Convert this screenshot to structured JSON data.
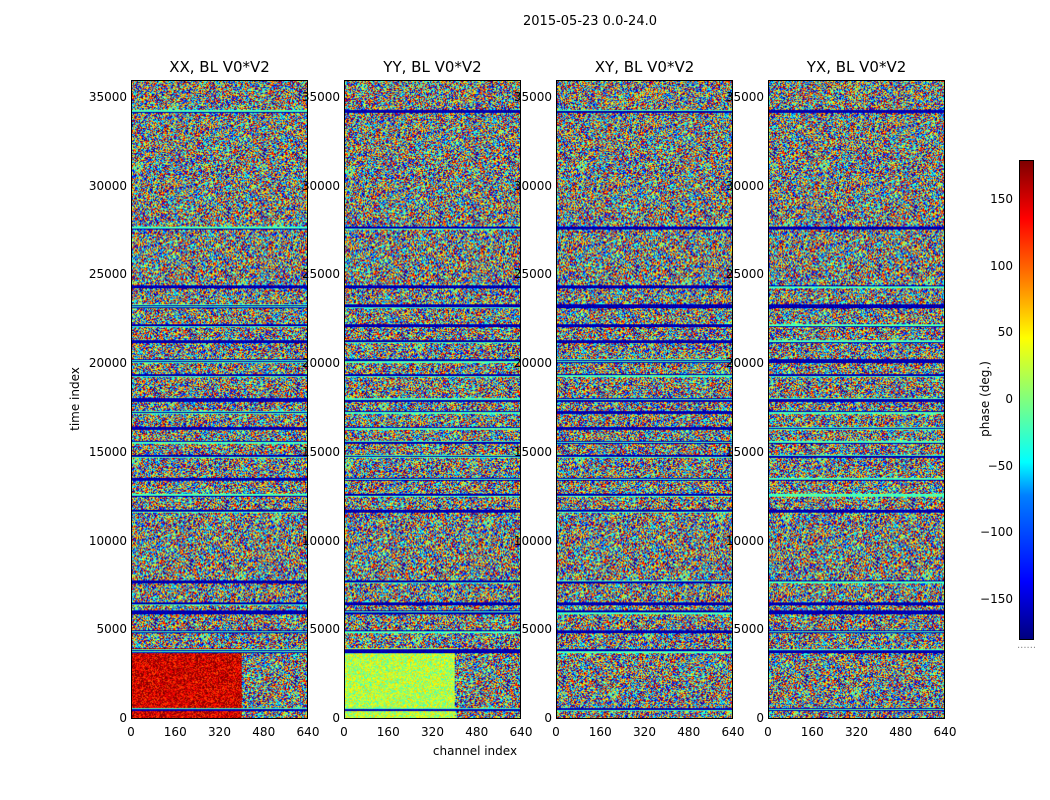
{
  "figure_title": "2015-05-23 0.0-24.0",
  "chart_data": {
    "type": "heatmap",
    "subtype": "phase waterfall (channel vs time)",
    "xlabel": "channel index",
    "ylabel": "time index",
    "xlim": [
      0,
      640
    ],
    "ylim": [
      0,
      36000
    ],
    "xticks": [
      0,
      160,
      320,
      480,
      640
    ],
    "xtick_labels": [
      "0",
      "160",
      "320",
      "480",
      "640"
    ],
    "yticks": [
      0,
      5000,
      10000,
      15000,
      20000,
      25000,
      30000,
      35000
    ],
    "ytick_labels": [
      "0",
      "5000",
      "10000",
      "15000",
      "20000",
      "25000",
      "30000",
      "35000"
    ],
    "panels": [
      {
        "name": "XX",
        "title": "XX, BL V0*V2",
        "coherent_low_region": {
          "time_range": [
            0,
            4000
          ],
          "channel_split": 400,
          "dominant_phase_deg": 150
        }
      },
      {
        "name": "YY",
        "title": "YY, BL V0*V2",
        "coherent_low_region": {
          "time_range": [
            0,
            4000
          ],
          "channel_split": 400,
          "dominant_phase_deg": 20
        }
      },
      {
        "name": "XY",
        "title": "XY, BL V0*V2",
        "coherent_low_region": null
      },
      {
        "name": "YX",
        "title": "YX, BL V0*V2",
        "coherent_low_region": null
      }
    ],
    "flagged_time_bands_approx": [
      500,
      3800,
      4900,
      6000,
      6500,
      7700,
      11700,
      12600,
      13500,
      14800,
      15600,
      16400,
      17300,
      18000,
      19400,
      20200,
      21300,
      22200,
      23300,
      24400,
      27700,
      34300
    ],
    "colorbar": {
      "label": "phase (deg.)",
      "range": [
        -180,
        180
      ],
      "ticks": [
        -150,
        -100,
        -50,
        0,
        50,
        100,
        150
      ],
      "tick_labels": [
        "−150",
        "−100",
        "−50",
        "0",
        "50",
        "100",
        "150"
      ],
      "colormap": "jet"
    }
  },
  "colors": {
    "jet_low": "#00007f",
    "jet_high": "#7f0000"
  }
}
